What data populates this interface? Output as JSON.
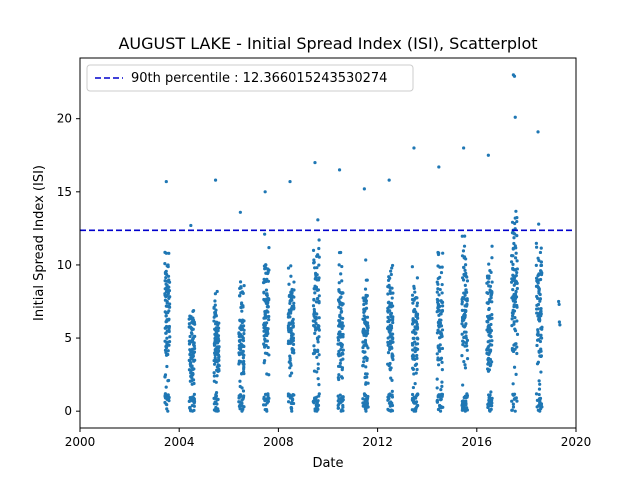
{
  "chart_data": {
    "type": "scatter",
    "title": "AUGUST LAKE - Initial Spread Index (ISI), Scatterplot",
    "xlabel": "Date",
    "ylabel": "Initial Spread Index (ISI)",
    "xlim": [
      2000.0,
      2020.0
    ],
    "ylim": [
      -1.15,
      24.15
    ],
    "x_ticks": [
      2000,
      2004,
      2008,
      2012,
      2016,
      2020
    ],
    "x_tick_labels": [
      "2000",
      "2004",
      "2008",
      "2012",
      "2016",
      "2020"
    ],
    "y_ticks": [
      0,
      5,
      10,
      15,
      20
    ],
    "y_tick_labels": [
      "0",
      "5",
      "10",
      "15",
      "20"
    ],
    "grid": false,
    "legend": {
      "position": "top-left",
      "entries": [
        "90th percentile : 12.366015243530274"
      ]
    },
    "reference_line": {
      "label": "90th percentile : 12.366015243530274",
      "y": 12.366015243530274,
      "x_range": [
        2000.0,
        2019.9
      ],
      "style": "dashed",
      "color": "#0000cc"
    },
    "series_color": "#1f77b4",
    "seasons": [
      {
        "year_start": 2003.42,
        "year_end": 2003.62,
        "max": 15.7,
        "mean": 6.5
      },
      {
        "year_start": 2004.4,
        "year_end": 2004.63,
        "max": 12.7,
        "mean": 4.2
      },
      {
        "year_start": 2005.4,
        "year_end": 2005.62,
        "max": 15.8,
        "mean": 4.5
      },
      {
        "year_start": 2006.4,
        "year_end": 2006.62,
        "max": 13.6,
        "mean": 5.3
      },
      {
        "year_start": 2007.4,
        "year_end": 2007.62,
        "max": 15.0,
        "mean": 6.5
      },
      {
        "year_start": 2008.4,
        "year_end": 2008.63,
        "max": 15.7,
        "mean": 6.0
      },
      {
        "year_start": 2009.4,
        "year_end": 2009.65,
        "max": 17.0,
        "mean": 7.0
      },
      {
        "year_start": 2010.4,
        "year_end": 2010.62,
        "max": 16.5,
        "mean": 6.0
      },
      {
        "year_start": 2011.4,
        "year_end": 2011.62,
        "max": 15.2,
        "mean": 5.5
      },
      {
        "year_start": 2012.4,
        "year_end": 2012.62,
        "max": 15.8,
        "mean": 6.0
      },
      {
        "year_start": 2013.4,
        "year_end": 2013.62,
        "max": 18.0,
        "mean": 5.5
      },
      {
        "year_start": 2014.4,
        "year_end": 2014.63,
        "max": 16.7,
        "mean": 6.0
      },
      {
        "year_start": 2015.4,
        "year_end": 2015.63,
        "max": 18.0,
        "mean": 7.0
      },
      {
        "year_start": 2016.4,
        "year_end": 2016.62,
        "max": 17.5,
        "mean": 6.5
      },
      {
        "year_start": 2017.4,
        "year_end": 2017.65,
        "max": 23.0,
        "mean": 8.0
      },
      {
        "year_start": 2018.4,
        "year_end": 2018.63,
        "max": 19.1,
        "mean": 7.0
      }
    ],
    "extra_points": [
      {
        "x": 2017.52,
        "y": 22.9
      },
      {
        "x": 2017.55,
        "y": 20.1
      },
      {
        "x": 2019.3,
        "y": 7.5
      },
      {
        "x": 2019.32,
        "y": 7.3
      },
      {
        "x": 2019.33,
        "y": 6.1
      },
      {
        "x": 2019.35,
        "y": 5.9
      }
    ]
  }
}
